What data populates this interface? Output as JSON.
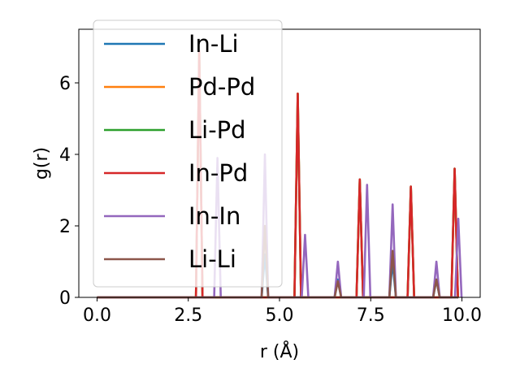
{
  "chart_data": {
    "type": "line",
    "title": "",
    "xlabel": "r (Å)",
    "ylabel": "g(r)",
    "xlim": [
      -0.5,
      10.5
    ],
    "ylim": [
      0,
      7.5
    ],
    "xticks": [
      0.0,
      2.5,
      5.0,
      7.5,
      10.0
    ],
    "xtick_labels": [
      "0.0",
      "2.5",
      "5.0",
      "7.5",
      "10.0"
    ],
    "yticks": [
      0,
      2,
      4,
      6
    ],
    "ytick_labels": [
      "0",
      "2",
      "4",
      "6"
    ],
    "grid": false,
    "legend_position": "top-left",
    "series": [
      {
        "name": "In-Li",
        "color": "#1f77b4",
        "peaks": [
          [
            4.6,
            1.2
          ],
          [
            6.6,
            0.5
          ],
          [
            8.1,
            1.0
          ],
          [
            9.3,
            0.5
          ]
        ]
      },
      {
        "name": "Pd-Pd",
        "color": "#ff7f0e",
        "peaks": [
          [
            2.8,
            6.9
          ],
          [
            5.5,
            5.7
          ],
          [
            7.2,
            3.3
          ],
          [
            8.6,
            3.1
          ],
          [
            9.8,
            3.6
          ]
        ]
      },
      {
        "name": "Li-Pd",
        "color": "#2ca02c",
        "peaks": [
          [
            2.8,
            6.9
          ],
          [
            5.5,
            5.7
          ],
          [
            7.2,
            3.3
          ],
          [
            8.6,
            3.1
          ],
          [
            9.8,
            3.6
          ]
        ]
      },
      {
        "name": "In-Pd",
        "color": "#d62728",
        "peaks": [
          [
            2.8,
            6.9
          ],
          [
            5.5,
            5.7
          ],
          [
            7.2,
            3.3
          ],
          [
            8.6,
            3.1
          ],
          [
            9.8,
            3.6
          ]
        ]
      },
      {
        "name": "In-In",
        "color": "#9467bd",
        "peaks": [
          [
            3.3,
            3.9
          ],
          [
            4.6,
            4.0
          ],
          [
            5.7,
            1.75
          ],
          [
            6.6,
            1.0
          ],
          [
            7.4,
            3.15
          ],
          [
            8.1,
            2.6
          ],
          [
            9.3,
            1.0
          ],
          [
            9.9,
            2.2
          ]
        ]
      },
      {
        "name": "Li-Li",
        "color": "#8c564b",
        "peaks": [
          [
            4.6,
            2.0
          ],
          [
            6.6,
            0.45
          ],
          [
            8.1,
            1.3
          ],
          [
            9.3,
            0.5
          ]
        ]
      }
    ]
  }
}
